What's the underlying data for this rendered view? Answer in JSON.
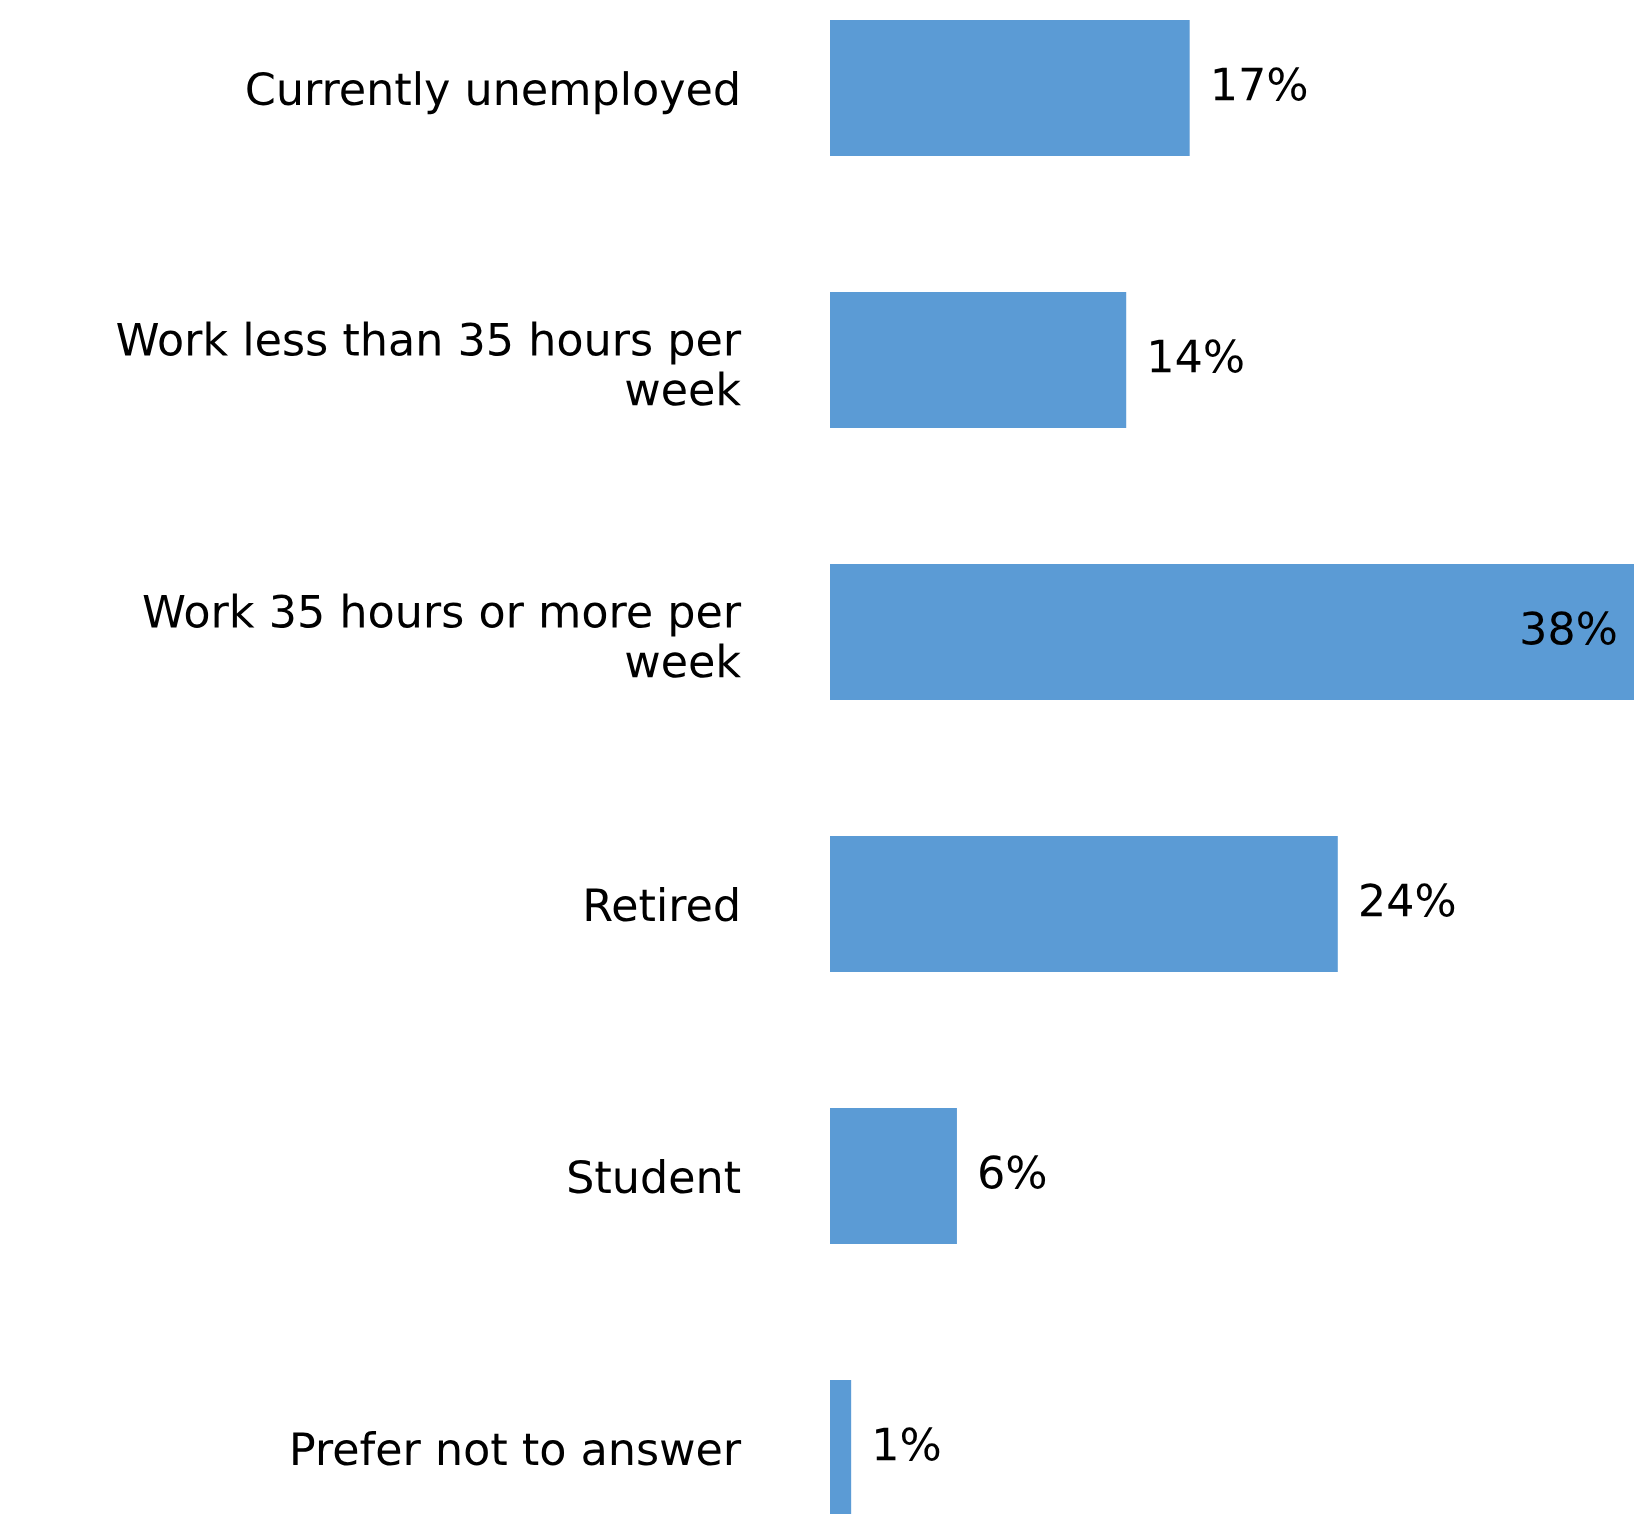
{
  "chart_data": {
    "type": "bar",
    "orientation": "horizontal",
    "categories": [
      "Currently unemployed",
      "Work less than 35 hours per\nweek",
      "Work 35 hours or more per\nweek",
      "Retired",
      "Student",
      "Prefer not to answer"
    ],
    "values": [
      17,
      14,
      38,
      24,
      6,
      1
    ],
    "value_labels": [
      "17%",
      "14%",
      "38%",
      "24%",
      "6%",
      "1%"
    ],
    "color": "#5b9bd5"
  }
}
